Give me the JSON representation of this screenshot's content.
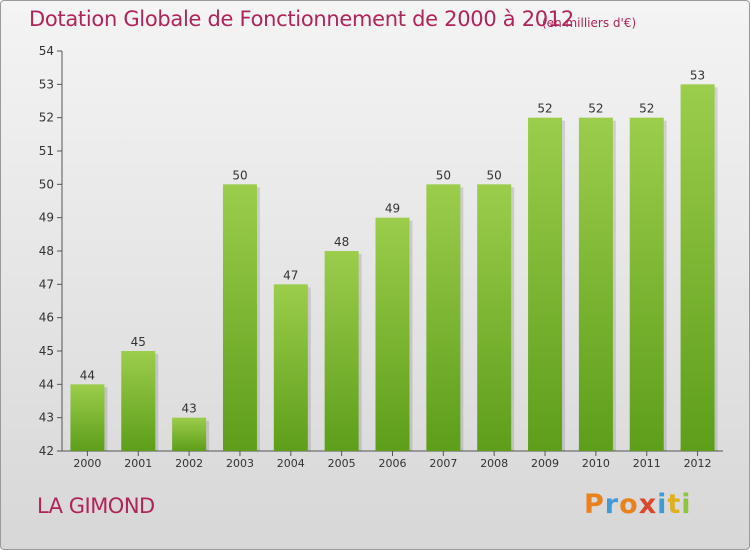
{
  "header": {
    "title": "Dotation Globale de Fonctionnement de 2000 à 2012",
    "subtitle": "(en milliers d'€)"
  },
  "footer": {
    "commune": "LA GIMOND",
    "logo_text": "Proxiti",
    "logo_colors": [
      "#e8821e",
      "#3f9ad6",
      "#e8821e",
      "#d9482b",
      "#3f9ad6",
      "#e0b01f",
      "#8cc63f"
    ]
  },
  "colors": {
    "title": "#b0245c",
    "bar_top": "#9ccd4c",
    "bar_bottom": "#5d9e1a"
  },
  "chart_data": {
    "type": "bar",
    "title": "Dotation Globale de Fonctionnement de 2000 à 2012",
    "subtitle": "(en milliers d'€)",
    "categories": [
      "2000",
      "2001",
      "2002",
      "2003",
      "2004",
      "2005",
      "2006",
      "2007",
      "2008",
      "2009",
      "2010",
      "2011",
      "2012"
    ],
    "values": [
      44,
      45,
      43,
      50,
      47,
      48,
      49,
      50,
      50,
      52,
      52,
      52,
      53
    ],
    "ylim": [
      42,
      54
    ],
    "yticks": [
      42,
      43,
      44,
      45,
      46,
      47,
      48,
      49,
      50,
      51,
      52,
      53,
      54
    ],
    "xlabel": "",
    "ylabel": "",
    "grid": false,
    "legend": "none"
  }
}
